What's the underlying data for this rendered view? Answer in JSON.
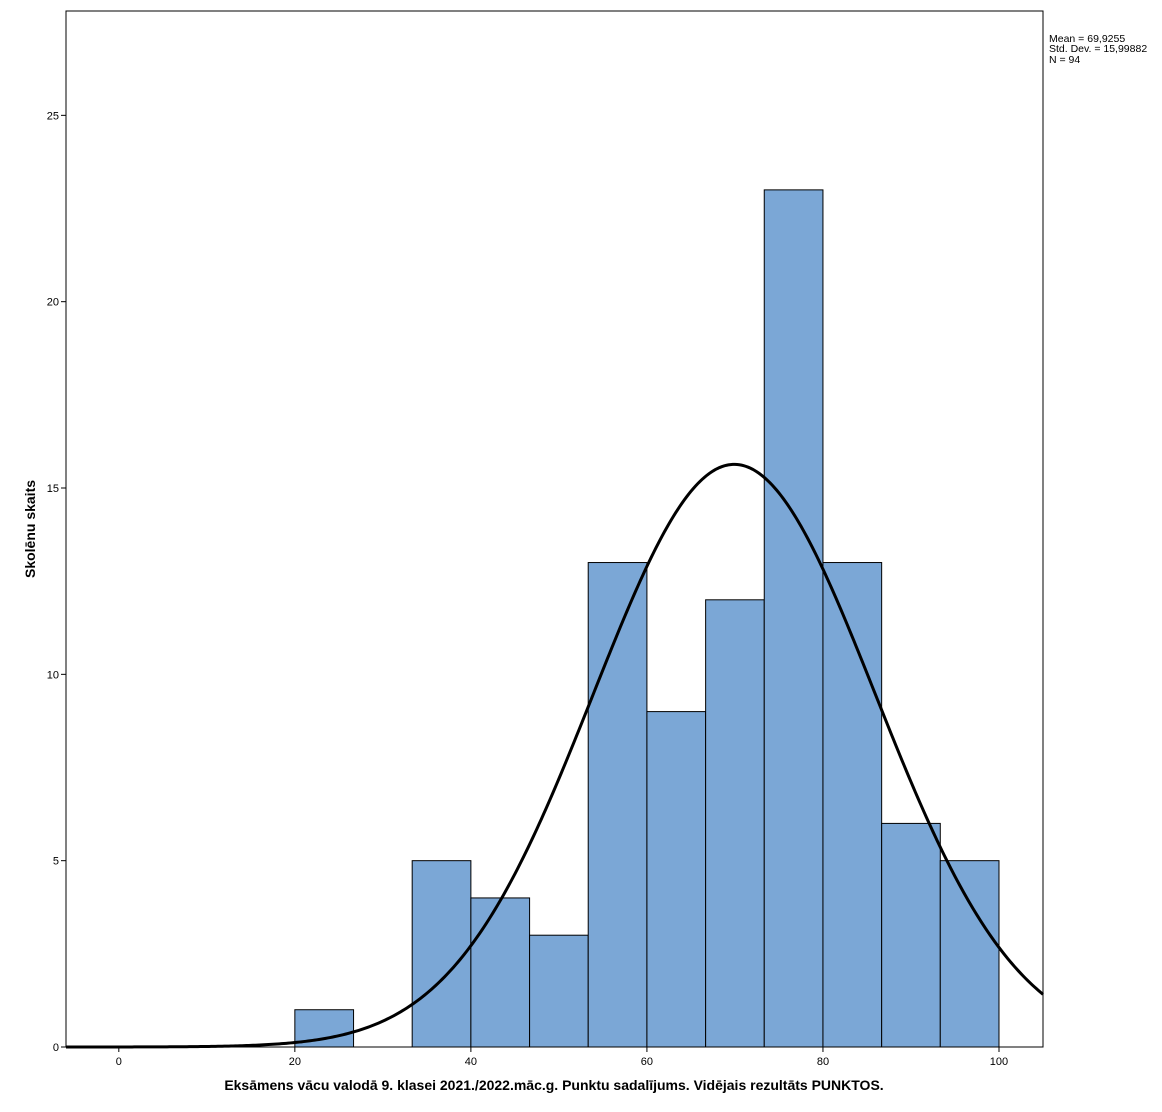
{
  "chart_data": {
    "type": "bar",
    "subtype": "histogram-with-normal-curve",
    "xlabel": "Eksāmens vācu valodā 9. klasei 2021./2022.māc.g. Punktu sadalījums. Vidējais rezultāts PUNKTOS.",
    "ylabel": "Skolēnu skaits",
    "xlim": [
      -6,
      105
    ],
    "ylim": [
      0,
      27.8
    ],
    "x_ticks": [
      0,
      20,
      40,
      60,
      80,
      100
    ],
    "y_ticks": [
      0,
      5,
      10,
      15,
      20,
      25
    ],
    "bin_width": 6.67,
    "bins": [
      {
        "from": 20.0,
        "to": 26.67,
        "count": 1
      },
      {
        "from": 33.33,
        "to": 40.0,
        "count": 5
      },
      {
        "from": 40.0,
        "to": 46.67,
        "count": 4
      },
      {
        "from": 46.67,
        "to": 53.33,
        "count": 3
      },
      {
        "from": 53.33,
        "to": 60.0,
        "count": 13
      },
      {
        "from": 60.0,
        "to": 66.67,
        "count": 9
      },
      {
        "from": 66.67,
        "to": 73.33,
        "count": 12
      },
      {
        "from": 73.33,
        "to": 80.0,
        "count": 23
      },
      {
        "from": 80.0,
        "to": 86.67,
        "count": 13
      },
      {
        "from": 86.67,
        "to": 93.33,
        "count": 6
      },
      {
        "from": 93.33,
        "to": 100.0,
        "count": 5
      }
    ],
    "normal_curve": {
      "mean": 69.9255,
      "sd": 15.99882,
      "n": 94
    },
    "bar_color": "#7ba7d6",
    "stats_text": [
      "Mean = 69,9255",
      "Std. Dev. = 15,99882",
      "N = 94"
    ],
    "legend": "none",
    "grid": false
  }
}
